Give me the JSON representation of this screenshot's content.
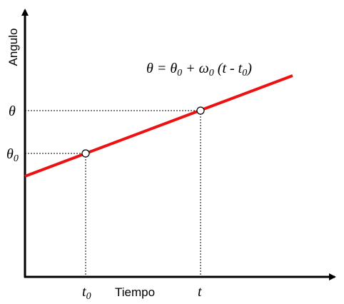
{
  "axes": {
    "y_label": "Angulo",
    "x_label": "Tiempo"
  },
  "y_markers": [
    {
      "symbol": "θ",
      "sub": null
    },
    {
      "symbol": "θ",
      "sub": "0"
    }
  ],
  "x_markers": [
    {
      "symbol": "t",
      "sub": "0"
    },
    {
      "symbol": "t",
      "sub": null
    }
  ],
  "equation": [
    {
      "text": "θ = θ"
    },
    {
      "sub": "0"
    },
    {
      "text": " + ω"
    },
    {
      "sub": "0"
    },
    {
      "text": " (t - t"
    },
    {
      "sub": "0"
    },
    {
      "text": ")"
    }
  ]
}
